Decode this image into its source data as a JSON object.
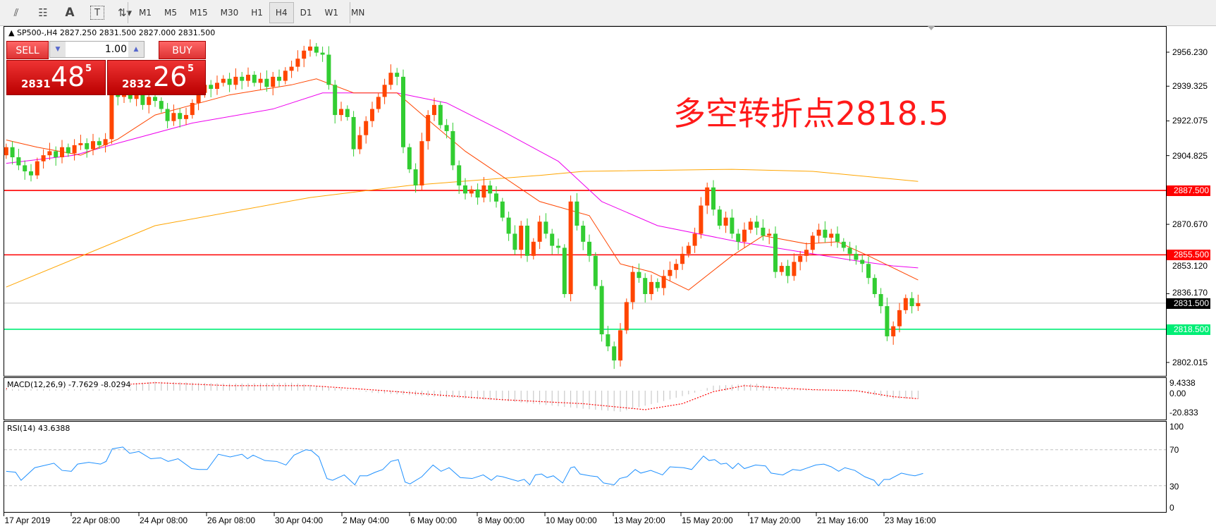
{
  "toolbar": {
    "tools": [
      {
        "name": "fibonacci-expansion-icon",
        "glyph": "⫽"
      },
      {
        "name": "fibonacci-levels-icon",
        "glyph": "☷"
      },
      {
        "name": "text-icon",
        "glyph": "A"
      },
      {
        "name": "text-label-icon",
        "glyph": "T"
      },
      {
        "name": "arrows-icon",
        "glyph": "⇅▾"
      }
    ],
    "timeframes": [
      "M1",
      "M5",
      "M15",
      "M30",
      "H1",
      "H4",
      "D1",
      "W1",
      "MN"
    ],
    "active_timeframe": "H4"
  },
  "header": {
    "symbol_info": "SP500-,H4  2827.250 2831.500 2827.000 2831.500"
  },
  "trade_panel": {
    "sell_label": "SELL",
    "buy_label": "BUY",
    "lot": "1.00",
    "sell_price_small": "2831",
    "sell_price_big": "48",
    "sell_price_sup": "5",
    "buy_price_small": "2832",
    "buy_price_big": "26",
    "buy_price_sup": "5"
  },
  "annotation": "多空转折点2818.5",
  "colors": {
    "bull": "#ff4500",
    "bear": "#32cd32",
    "resistance": "#ff0000",
    "support": "#00ee76",
    "ma_fast": "#ff4500",
    "ma_mid": "#ee00ee",
    "ma_slow": "#ffa500",
    "rsi": "#1e90ff",
    "macd_signal": "#ff0000"
  },
  "chart_data": [
    {
      "type": "candlestick",
      "title": "SP500-,H4",
      "ylim": [
        2798,
        2965
      ],
      "price_ticks": [
        "2956.230",
        "2939.325",
        "2922.075",
        "2904.825",
        "2870.670",
        "2853.120",
        "2836.170",
        "2802.015"
      ],
      "time_labels": [
        "17 Apr 2019",
        "22 Apr 08:00",
        "24 Apr 08:00",
        "26 Apr 08:00",
        "30 Apr 04:00",
        "2 May 04:00",
        "6 May 00:00",
        "8 May 00:00",
        "10 May 00:00",
        "13 May 20:00",
        "15 May 20:00",
        "17 May 20:00",
        "21 May 16:00",
        "23 May 16:00"
      ],
      "first_open": 2905,
      "closes": [
        2909,
        2904,
        2900,
        2897,
        2895,
        2902,
        2905,
        2907,
        2904,
        2909,
        2906,
        2910,
        2911,
        2908,
        2912,
        2910,
        2913,
        2936,
        2934,
        2937,
        2933,
        2935,
        2930,
        2934,
        2932,
        2928,
        2922,
        2926,
        2923,
        2925,
        2931,
        2936,
        2940,
        2938,
        2941,
        2943,
        2940,
        2944,
        2942,
        2945,
        2941,
        2943,
        2939,
        2944,
        2942,
        2947,
        2949,
        2953,
        2957,
        2959,
        2956,
        2955,
        2940,
        2925,
        2928,
        2924,
        2908,
        2915,
        2922,
        2928,
        2934,
        2940,
        2946,
        2944,
        2909,
        2898,
        2890,
        2912,
        2925,
        2930,
        2920,
        2917,
        2900,
        2890,
        2886,
        2888,
        2884,
        2890,
        2886,
        2882,
        2874,
        2866,
        2858,
        2870,
        2855,
        2862,
        2872,
        2866,
        2860,
        2859,
        2836,
        2882,
        2870,
        2862,
        2855,
        2840,
        2816,
        2810,
        2803,
        2818,
        2832,
        2847,
        2844,
        2836,
        2842,
        2839,
        2845,
        2848,
        2851,
        2856,
        2860,
        2866,
        2880,
        2889,
        2878,
        2870,
        2874,
        2866,
        2862,
        2868,
        2872,
        2869,
        2865,
        2866,
        2847,
        2850,
        2845,
        2852,
        2855,
        2858,
        2865,
        2868,
        2864,
        2866,
        2862,
        2859,
        2856,
        2853,
        2851,
        2844,
        2836,
        2830,
        2815,
        2820,
        2828,
        2834,
        2830,
        2831.5
      ],
      "moving_averages": {
        "fast": [
          [
            0,
            2912.6
          ],
          [
            5,
            2909
          ],
          [
            12,
            2905
          ],
          [
            18,
            2913
          ],
          [
            24,
            2925
          ],
          [
            36,
            2935
          ],
          [
            46,
            2940
          ],
          [
            50,
            2943
          ],
          [
            56,
            2936
          ],
          [
            63,
            2936
          ],
          [
            69,
            2920
          ],
          [
            74,
            2907
          ],
          [
            86,
            2882
          ],
          [
            94,
            2875
          ],
          [
            99,
            2851
          ],
          [
            104,
            2847
          ],
          [
            110,
            2838
          ],
          [
            117,
            2855
          ],
          [
            122,
            2865
          ],
          [
            129,
            2861
          ],
          [
            134,
            2862
          ],
          [
            139,
            2855
          ],
          [
            147,
            2843
          ]
        ],
        "mid": [
          [
            0,
            2901
          ],
          [
            11,
            2905
          ],
          [
            18,
            2911
          ],
          [
            30,
            2921
          ],
          [
            43,
            2928
          ],
          [
            51,
            2936
          ],
          [
            63,
            2936
          ],
          [
            71,
            2931
          ],
          [
            80,
            2917
          ],
          [
            89,
            2902
          ],
          [
            96,
            2882
          ],
          [
            105,
            2870
          ],
          [
            118,
            2862
          ],
          [
            124,
            2859
          ],
          [
            136,
            2853
          ],
          [
            143,
            2850
          ],
          [
            147,
            2849
          ]
        ],
        "slow": [
          [
            0,
            2839.5
          ],
          [
            24,
            2870
          ],
          [
            49,
            2884
          ],
          [
            65,
            2890
          ],
          [
            86,
            2895
          ],
          [
            93,
            2897
          ],
          [
            117,
            2898
          ],
          [
            130,
            2897
          ],
          [
            147,
            2892
          ]
        ]
      },
      "horizontal_lines": [
        {
          "price": "2887.500",
          "kind": "resistance"
        },
        {
          "price": "2855.500",
          "kind": "resistance"
        },
        {
          "price": "2818.500",
          "kind": "support"
        },
        {
          "price": "2831.500",
          "kind": "current"
        }
      ]
    },
    {
      "type": "bar+line",
      "title": "MACD(12,26,9) -7.7629 -8.0294",
      "ticks": [
        "9.4338",
        "0.00",
        "-20.833"
      ],
      "ylim": [
        -20.833,
        9.4338
      ],
      "histogram": [
        [
          0,
          2
        ],
        [
          18,
          6
        ],
        [
          24,
          9
        ],
        [
          36,
          7
        ],
        [
          46,
          8
        ],
        [
          54,
          2
        ],
        [
          59,
          -2
        ],
        [
          69,
          -6
        ],
        [
          80,
          -10
        ],
        [
          93,
          -18
        ],
        [
          99,
          -21
        ],
        [
          105,
          -12
        ],
        [
          111,
          -2
        ],
        [
          114,
          5
        ],
        [
          121,
          7
        ],
        [
          125,
          2
        ],
        [
          137,
          -1
        ],
        [
          143,
          -8
        ],
        [
          147,
          -7.76
        ]
      ],
      "signal": [
        [
          0,
          2
        ],
        [
          11,
          3
        ],
        [
          24,
          8
        ],
        [
          36,
          5
        ],
        [
          49,
          5
        ],
        [
          61,
          0
        ],
        [
          69,
          -4
        ],
        [
          80,
          -9
        ],
        [
          93,
          -13
        ],
        [
          103,
          -19
        ],
        [
          109,
          -13
        ],
        [
          114,
          -1
        ],
        [
          119,
          5
        ],
        [
          124,
          3
        ],
        [
          130,
          1
        ],
        [
          137,
          0
        ],
        [
          143,
          -6
        ],
        [
          147,
          -8.03
        ]
      ]
    },
    {
      "type": "line",
      "title": "RSI(14) 43.6388",
      "ticks": [
        "100",
        "70",
        "30",
        "0"
      ],
      "ylim": [
        0,
        100
      ],
      "levels": [
        70,
        30
      ],
      "values": [
        [
          0,
          46
        ],
        [
          1.5,
          45
        ],
        [
          2.4,
          36
        ],
        [
          4.6,
          50
        ],
        [
          7.7,
          55
        ],
        [
          9,
          47
        ],
        [
          10.5,
          46
        ],
        [
          11.5,
          54
        ],
        [
          13.3,
          56
        ],
        [
          15.2,
          54
        ],
        [
          16.1,
          57
        ],
        [
          17.1,
          71
        ],
        [
          18.8,
          73
        ],
        [
          19.9,
          66
        ],
        [
          21.4,
          68
        ],
        [
          23.3,
          60
        ],
        [
          24.9,
          61
        ],
        [
          26.1,
          57
        ],
        [
          27.7,
          60
        ],
        [
          29.9,
          49
        ],
        [
          31.1,
          48
        ],
        [
          32.4,
          48
        ],
        [
          34.2,
          65
        ],
        [
          36.1,
          62
        ],
        [
          38,
          65
        ],
        [
          38.9,
          60
        ],
        [
          39.8,
          64
        ],
        [
          41.7,
          58
        ],
        [
          43.6,
          57
        ],
        [
          45.1,
          53
        ],
        [
          46.4,
          64
        ],
        [
          48.3,
          70
        ],
        [
          49.2,
          69
        ],
        [
          50.4,
          62
        ],
        [
          51.7,
          38
        ],
        [
          52.6,
          36
        ],
        [
          54.5,
          42
        ],
        [
          56.2,
          31
        ],
        [
          57,
          41
        ],
        [
          58.2,
          41
        ],
        [
          59.5,
          45
        ],
        [
          60.7,
          48
        ],
        [
          62,
          57
        ],
        [
          63.2,
          59
        ],
        [
          64.3,
          34
        ],
        [
          65.1,
          32
        ],
        [
          67,
          40
        ],
        [
          68.8,
          53
        ],
        [
          70.1,
          46
        ],
        [
          71.4,
          50
        ],
        [
          73.2,
          39
        ],
        [
          75.1,
          38
        ],
        [
          76.9,
          42
        ],
        [
          78.2,
          36
        ],
        [
          79.1,
          41
        ],
        [
          80,
          40
        ],
        [
          82.5,
          35
        ],
        [
          83.5,
          37
        ],
        [
          84.4,
          31
        ],
        [
          85.3,
          42
        ],
        [
          86.3,
          43
        ],
        [
          87.2,
          39
        ],
        [
          88.2,
          41
        ],
        [
          89.7,
          33
        ],
        [
          91,
          50
        ],
        [
          91.6,
          51
        ],
        [
          92.5,
          43
        ],
        [
          94.1,
          41
        ],
        [
          95.3,
          40
        ],
        [
          96.3,
          33
        ],
        [
          98,
          31
        ],
        [
          98.9,
          38
        ],
        [
          100.1,
          40
        ],
        [
          101.4,
          48
        ],
        [
          102.3,
          44
        ],
        [
          103.9,
          47
        ],
        [
          105.8,
          42
        ],
        [
          107,
          51
        ],
        [
          109.2,
          50
        ],
        [
          110.5,
          48
        ],
        [
          112.4,
          63
        ],
        [
          113.3,
          58
        ],
        [
          114.2,
          59
        ],
        [
          115.2,
          54
        ],
        [
          116.1,
          55
        ],
        [
          117.1,
          49
        ],
        [
          118,
          55
        ],
        [
          119,
          49
        ],
        [
          120.8,
          53
        ],
        [
          122.4,
          52
        ],
        [
          123.3,
          44
        ],
        [
          125.2,
          42
        ],
        [
          126.8,
          48
        ],
        [
          128,
          47
        ],
        [
          130.5,
          53
        ],
        [
          131.8,
          54
        ],
        [
          133,
          51
        ],
        [
          134.2,
          46
        ],
        [
          135.2,
          50
        ],
        [
          136.8,
          47
        ],
        [
          138.4,
          40
        ],
        [
          139.9,
          36
        ],
        [
          140.6,
          30
        ],
        [
          141.5,
          37
        ],
        [
          142.4,
          37
        ],
        [
          144.3,
          44
        ],
        [
          145.6,
          42
        ],
        [
          146.5,
          41
        ],
        [
          147.8,
          43.6
        ]
      ]
    }
  ]
}
